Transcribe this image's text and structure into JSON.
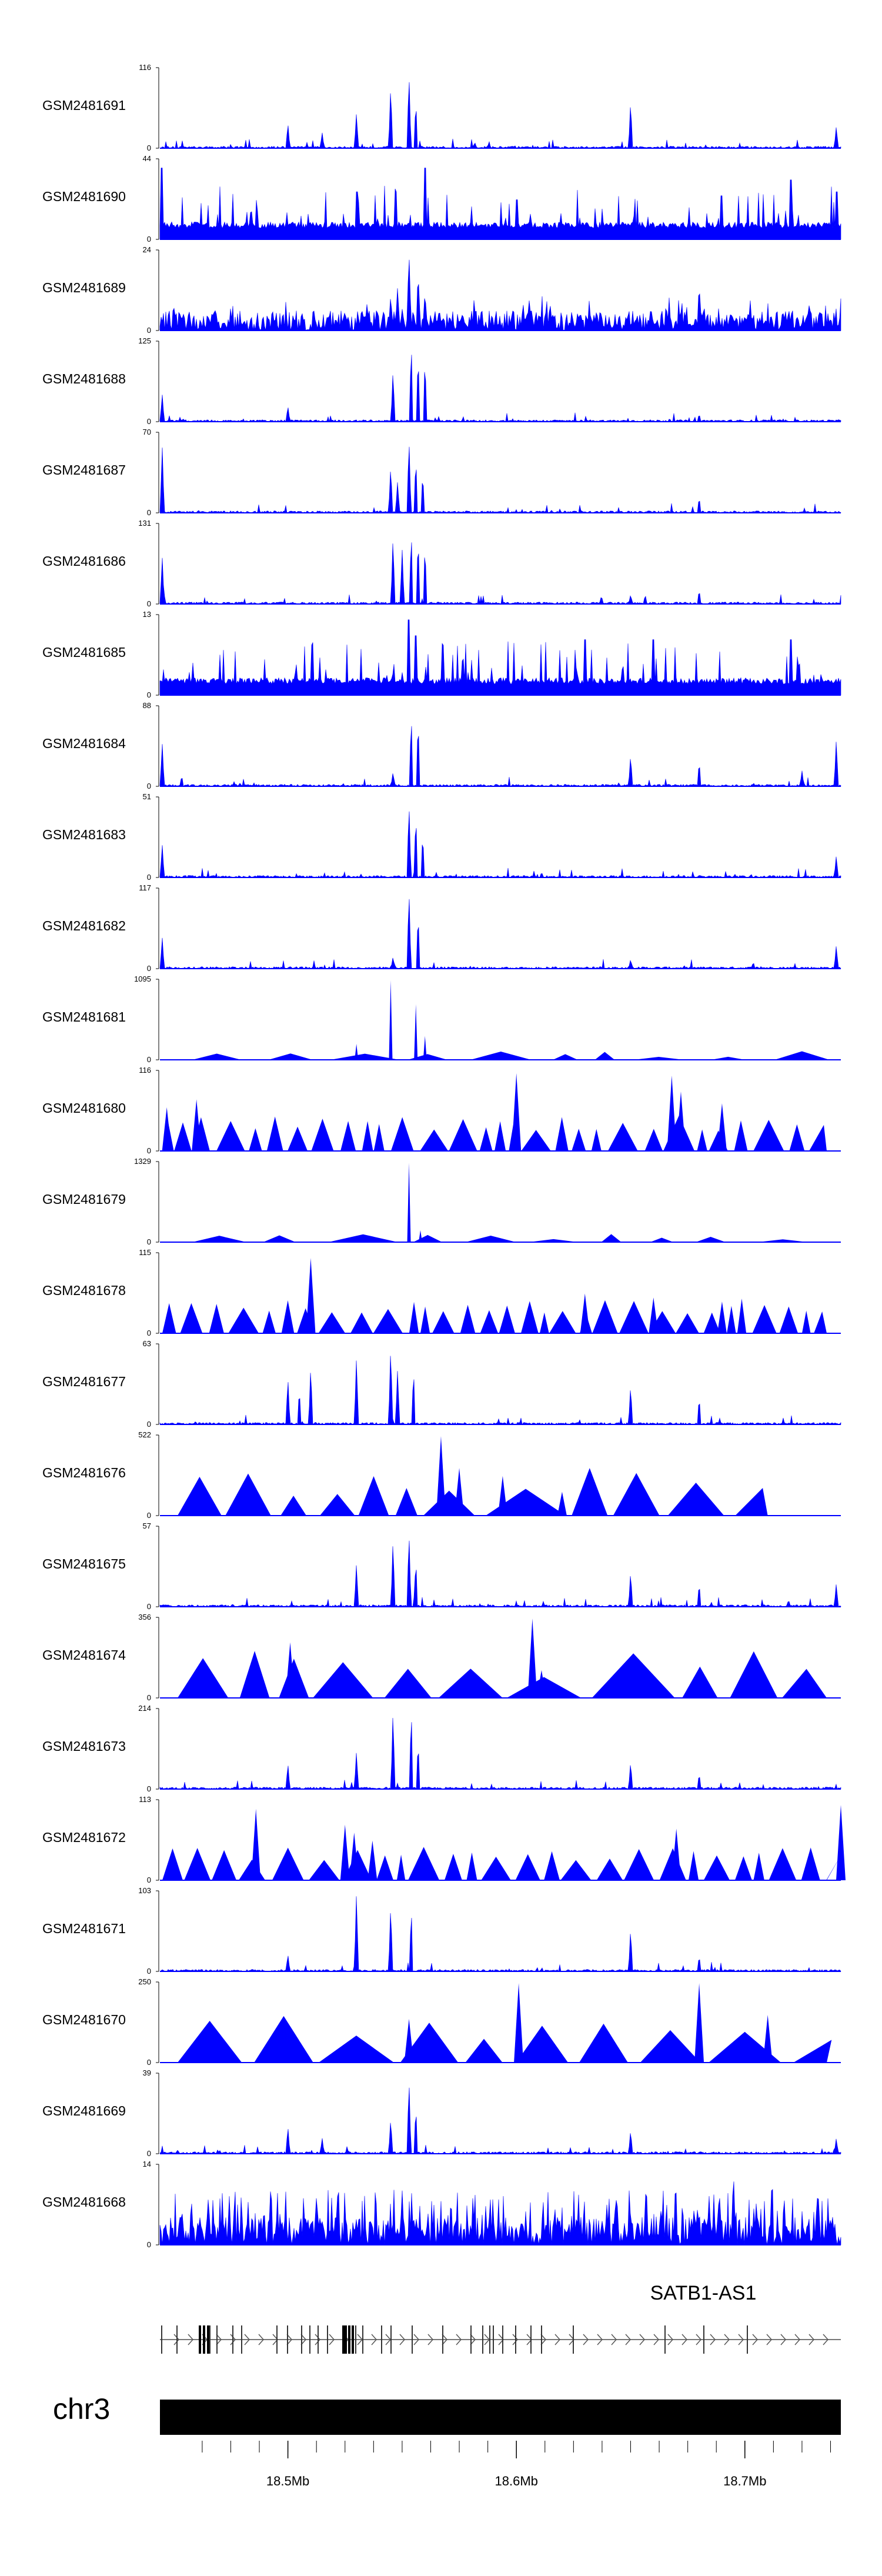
{
  "chart_data": {
    "type": "area",
    "title": "",
    "region": {
      "chrom": "chr3",
      "start_mb": 18.444,
      "end_mb": 18.742
    },
    "color": "#0000ff",
    "tracks": [
      {
        "name": "GSM2481691",
        "ymax": "116",
        "ymin": "0",
        "style": "sparse",
        "seed": 91,
        "peaks": [
          [
            18.5,
            0.32
          ],
          [
            18.515,
            0.2
          ],
          [
            18.53,
            0.45
          ],
          [
            18.545,
            0.8
          ],
          [
            18.553,
            0.95
          ],
          [
            18.556,
            0.6
          ],
          [
            18.65,
            0.6
          ],
          [
            18.74,
            0.28
          ]
        ]
      },
      {
        "name": "GSM2481690",
        "ymax": "44",
        "ymin": "0",
        "style": "dense",
        "seed": 90,
        "peaks": [
          [
            18.445,
            0.9
          ],
          [
            18.53,
            0.6
          ],
          [
            18.56,
            0.9
          ],
          [
            18.6,
            0.5
          ],
          [
            18.69,
            0.55
          ],
          [
            18.72,
            0.75
          ],
          [
            18.74,
            0.6
          ]
        ]
      },
      {
        "name": "GSM2481689",
        "ymax": "24",
        "ymin": "0",
        "style": "noisy",
        "seed": 89,
        "peaks": [
          [
            18.545,
            0.45
          ],
          [
            18.548,
            0.55
          ],
          [
            18.553,
            1.0
          ],
          [
            18.557,
            0.75
          ],
          [
            18.56,
            0.5
          ],
          [
            18.68,
            0.6
          ],
          [
            18.728,
            0.35
          ]
        ]
      },
      {
        "name": "GSM2481688",
        "ymax": "125",
        "ymin": "0",
        "style": "sparse",
        "seed": 88,
        "peaks": [
          [
            18.445,
            0.35
          ],
          [
            18.5,
            0.2
          ],
          [
            18.546,
            0.65
          ],
          [
            18.554,
            1.0
          ],
          [
            18.557,
            0.85
          ],
          [
            18.56,
            0.8
          ],
          [
            18.68,
            0.1
          ]
        ]
      },
      {
        "name": "GSM2481687",
        "ymax": "70",
        "ymin": "0",
        "style": "sparse",
        "seed": 87,
        "peaks": [
          [
            18.445,
            0.85
          ],
          [
            18.545,
            0.6
          ],
          [
            18.548,
            0.4
          ],
          [
            18.553,
            0.95
          ],
          [
            18.556,
            0.7
          ],
          [
            18.559,
            0.5
          ],
          [
            18.68,
            0.2
          ]
        ]
      },
      {
        "name": "GSM2481686",
        "ymax": "131",
        "ymin": "0",
        "style": "sparse",
        "seed": 86,
        "peaks": [
          [
            18.445,
            0.6
          ],
          [
            18.546,
            0.85
          ],
          [
            18.55,
            0.7
          ],
          [
            18.554,
            0.92
          ],
          [
            18.557,
            0.85
          ],
          [
            18.56,
            0.75
          ],
          [
            18.65,
            0.12
          ],
          [
            18.68,
            0.18
          ]
        ]
      },
      {
        "name": "GSM2481685",
        "ymax": "13",
        "ymin": "0",
        "style": "dense",
        "seed": 85,
        "peaks": [
          [
            18.553,
            0.95
          ],
          [
            18.556,
            0.75
          ],
          [
            18.63,
            0.7
          ],
          [
            18.66,
            0.7
          ],
          [
            18.72,
            0.7
          ]
        ]
      },
      {
        "name": "GSM2481684",
        "ymax": "88",
        "ymin": "0",
        "style": "sparse",
        "seed": 84,
        "peaks": [
          [
            18.445,
            0.55
          ],
          [
            18.546,
            0.18
          ],
          [
            18.554,
            0.9
          ],
          [
            18.557,
            0.85
          ],
          [
            18.65,
            0.4
          ],
          [
            18.68,
            0.32
          ],
          [
            18.725,
            0.2
          ],
          [
            18.74,
            0.6
          ]
        ]
      },
      {
        "name": "GSM2481683",
        "ymax": "51",
        "ymin": "0",
        "style": "sparse",
        "seed": 83,
        "peaks": [
          [
            18.445,
            0.42
          ],
          [
            18.553,
            0.95
          ],
          [
            18.556,
            0.8
          ],
          [
            18.559,
            0.55
          ],
          [
            18.74,
            0.28
          ]
        ]
      },
      {
        "name": "GSM2481682",
        "ymax": "117",
        "ymin": "0",
        "style": "sparse",
        "seed": 82,
        "peaks": [
          [
            18.445,
            0.4
          ],
          [
            18.546,
            0.15
          ],
          [
            18.553,
            1.0
          ],
          [
            18.557,
            0.7
          ],
          [
            18.65,
            0.12
          ],
          [
            18.74,
            0.3
          ]
        ]
      },
      {
        "name": "GSM2481681",
        "ymax": "1095",
        "ymin": "0",
        "style": "spiky",
        "seed": 81,
        "peaks": [
          [
            18.53,
            0.2
          ],
          [
            18.545,
            1.0
          ],
          [
            18.556,
            0.7
          ],
          [
            18.56,
            0.3
          ]
        ]
      },
      {
        "name": "GSM2481680",
        "ymax": "116",
        "ymin": "0",
        "style": "tri",
        "seed": 80,
        "peaks": [
          [
            18.447,
            0.55
          ],
          [
            18.46,
            0.65
          ],
          [
            18.6,
            0.98
          ],
          [
            18.668,
            0.95
          ],
          [
            18.672,
            0.75
          ],
          [
            18.69,
            0.6
          ]
        ]
      },
      {
        "name": "GSM2481679",
        "ymax": "1329",
        "ymin": "0",
        "style": "spiky",
        "seed": 79,
        "peaks": [
          [
            18.553,
            1.0
          ],
          [
            18.558,
            0.15
          ]
        ]
      },
      {
        "name": "GSM2481678",
        "ymax": "115",
        "ymin": "0",
        "style": "tri",
        "seed": 78,
        "peaks": [
          [
            18.51,
            0.95
          ],
          [
            18.63,
            0.5
          ],
          [
            18.66,
            0.45
          ],
          [
            18.69,
            0.4
          ]
        ]
      },
      {
        "name": "GSM2481677",
        "ymax": "63",
        "ymin": "0",
        "style": "sparse",
        "seed": 77,
        "peaks": [
          [
            18.5,
            0.6
          ],
          [
            18.505,
            0.45
          ],
          [
            18.51,
            0.75
          ],
          [
            18.53,
            0.85
          ],
          [
            18.545,
            1.0
          ],
          [
            18.548,
            0.7
          ],
          [
            18.555,
            0.7
          ],
          [
            18.65,
            0.5
          ],
          [
            18.68,
            0.35
          ]
        ]
      },
      {
        "name": "GSM2481676",
        "ymax": "522",
        "ymin": "0",
        "style": "bigtri",
        "seed": 76,
        "peaks": [
          [
            18.567,
            1.0
          ],
          [
            18.575,
            0.6
          ],
          [
            18.594,
            0.5
          ],
          [
            18.62,
            0.3
          ]
        ]
      },
      {
        "name": "GSM2481675",
        "ymax": "57",
        "ymin": "0",
        "style": "sparse",
        "seed": 75,
        "peaks": [
          [
            18.53,
            0.55
          ],
          [
            18.546,
            0.85
          ],
          [
            18.553,
            0.95
          ],
          [
            18.556,
            0.6
          ],
          [
            18.65,
            0.45
          ],
          [
            18.68,
            0.3
          ],
          [
            18.74,
            0.3
          ]
        ]
      },
      {
        "name": "GSM2481674",
        "ymax": "356",
        "ymin": "0",
        "style": "bigtri",
        "seed": 74,
        "peaks": [
          [
            18.501,
            0.7
          ],
          [
            18.607,
            1.0
          ],
          [
            18.611,
            0.35
          ]
        ]
      },
      {
        "name": "GSM2481673",
        "ymax": "214",
        "ymin": "0",
        "style": "sparse",
        "seed": 73,
        "peaks": [
          [
            18.5,
            0.33
          ],
          [
            18.53,
            0.48
          ],
          [
            18.546,
            1.0
          ],
          [
            18.554,
            1.0
          ],
          [
            18.557,
            0.6
          ],
          [
            18.65,
            0.35
          ],
          [
            18.68,
            0.2
          ]
        ]
      },
      {
        "name": "GSM2481672",
        "ymax": "113",
        "ymin": "0",
        "style": "tri",
        "seed": 72,
        "peaks": [
          [
            18.486,
            0.9
          ],
          [
            18.525,
            0.7
          ],
          [
            18.529,
            0.6
          ],
          [
            18.537,
            0.5
          ],
          [
            18.67,
            0.65
          ],
          [
            18.742,
            0.95
          ]
        ]
      },
      {
        "name": "GSM2481671",
        "ymax": "103",
        "ymin": "0",
        "style": "sparse",
        "seed": 71,
        "peaks": [
          [
            18.5,
            0.22
          ],
          [
            18.53,
            1.0
          ],
          [
            18.545,
            0.85
          ],
          [
            18.554,
            0.8
          ],
          [
            18.65,
            0.55
          ],
          [
            18.68,
            0.2
          ]
        ]
      },
      {
        "name": "GSM2481670",
        "ymax": "250",
        "ymin": "0",
        "style": "bigtri",
        "seed": 70,
        "peaks": [
          [
            18.553,
            0.55
          ],
          [
            18.601,
            1.0
          ],
          [
            18.68,
            1.0
          ],
          [
            18.71,
            0.6
          ]
        ]
      },
      {
        "name": "GSM2481669",
        "ymax": "39",
        "ymin": "0",
        "style": "sparse",
        "seed": 69,
        "peaks": [
          [
            18.5,
            0.35
          ],
          [
            18.515,
            0.2
          ],
          [
            18.545,
            0.45
          ],
          [
            18.553,
            0.95
          ],
          [
            18.556,
            0.6
          ],
          [
            18.65,
            0.3
          ],
          [
            18.74,
            0.2
          ]
        ]
      },
      {
        "name": "GSM2481668",
        "ymax": "14",
        "ymin": "0",
        "style": "fuzz",
        "seed": 68,
        "peaks": [
          [
            18.55,
            0.7
          ],
          [
            18.695,
            0.95
          ],
          [
            18.705,
            0.55
          ]
        ]
      }
    ],
    "gene": {
      "name": "SATB1-AS1",
      "strand": "+"
    },
    "chromosome": "chr3",
    "xticks": [
      {
        "pos_mb": 18.5,
        "label": "18.5Mb"
      },
      {
        "pos_mb": 18.6,
        "label": "18.6Mb"
      },
      {
        "pos_mb": 18.7,
        "label": "18.7Mb"
      }
    ]
  }
}
